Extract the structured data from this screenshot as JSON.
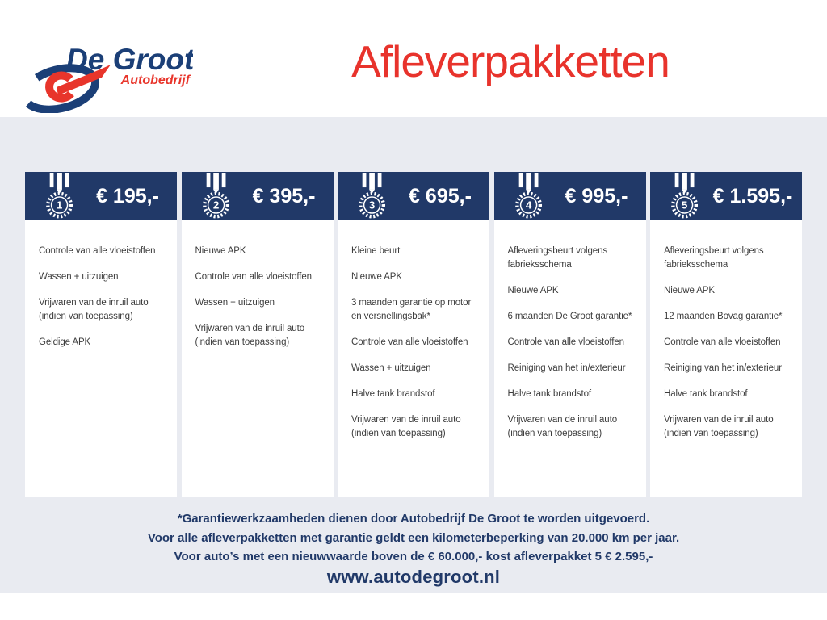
{
  "logo": {
    "name": "De Groot",
    "subtitle": "Autobedrijf"
  },
  "title": "Afleverpakketten",
  "packages": [
    {
      "number": "1",
      "price": "€ 195,-",
      "items": [
        "Controle van alle vloeistoffen",
        "Wassen + uitzuigen",
        "Vrijwaren van de inruil auto\n(indien van toepassing)",
        "Geldige APK"
      ]
    },
    {
      "number": "2",
      "price": "€ 395,-",
      "items": [
        "Nieuwe APK",
        "Controle van alle vloeistoffen",
        "Wassen + uitzuigen",
        "Vrijwaren van de inruil auto\n(indien van toepassing)"
      ]
    },
    {
      "number": "3",
      "price": "€ 695,-",
      "items": [
        "Kleine beurt",
        "Nieuwe APK",
        "3 maanden garantie op motor\nen versnellingsbak*",
        "Controle van alle vloeistoffen",
        "Wassen + uitzuigen",
        "Halve tank brandstof",
        "Vrijwaren van de inruil auto\n(indien van toepassing)"
      ]
    },
    {
      "number": "4",
      "price": "€ 995,-",
      "items": [
        "Afleveringsbeurt volgens\nfabrieksschema",
        "Nieuwe APK",
        "6 maanden De Groot garantie*",
        "Controle van alle vloeistoffen",
        "Reiniging van het in/exterieur",
        "Halve tank brandstof",
        "Vrijwaren van de inruil auto\n(indien van toepassing)"
      ]
    },
    {
      "number": "5",
      "price": "€ 1.595,-",
      "items": [
        "Afleveringsbeurt volgens\nfabrieksschema",
        "Nieuwe APK",
        "12 maanden Bovag garantie*",
        "Controle van alle vloeistoffen",
        "Reiniging van het in/exterieur",
        "Halve tank brandstof",
        "Vrijwaren van de inruil auto\n(indien van toepassing)"
      ]
    }
  ],
  "footnotes": [
    "*Garantiewerkzaamheden dienen door Autobedrijf De Groot te worden uitgevoerd.",
    "Voor alle afleverpakketten met garantie geldt een kilometerbeperking van 20.000 km per jaar.",
    "Voor auto’s met een nieuwwaarde boven de € 60.000,- kost afleverpakket 5 € 2.595,-"
  ],
  "website": "www.autodegroot.nl",
  "colors": {
    "navy": "#213968",
    "red": "#e8332c",
    "bg": "#e9ebf1",
    "text": "#3d3d3d",
    "white": "#ffffff"
  }
}
